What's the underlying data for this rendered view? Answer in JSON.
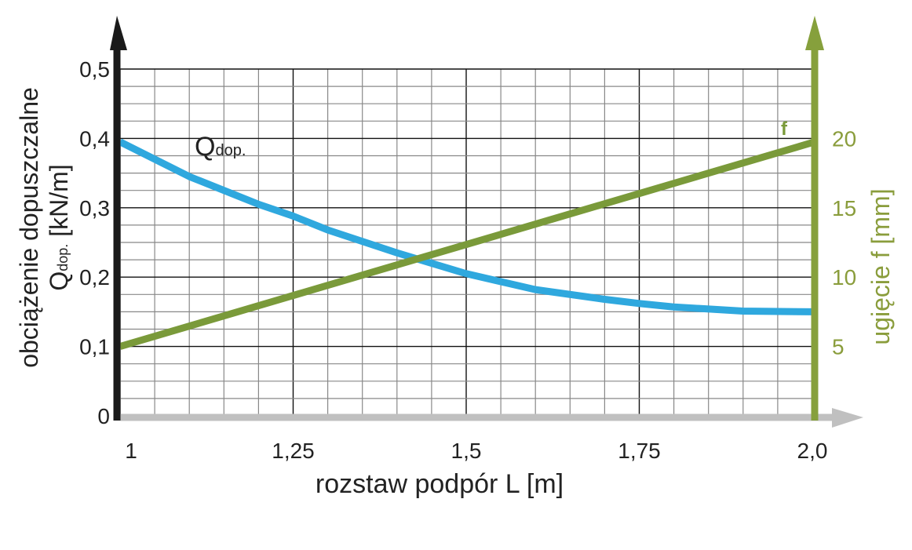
{
  "chart_data": {
    "type": "line",
    "title": "",
    "xlabel": "rozstaw podpór L [m]",
    "ylabel_line1": "obciążenie dopuszczalne",
    "ylabel_line2_main": "Q",
    "ylabel_line2_sub": "dop.",
    "ylabel_line2_unit": " [kN/m]",
    "y2label": "ugięcie f [mm]",
    "xlim": [
      1,
      2.0
    ],
    "ylim": [
      0,
      0.5
    ],
    "y2lim": [
      0,
      25
    ],
    "grid": true,
    "x_ticks": [
      1,
      1.25,
      1.5,
      1.75,
      2.0
    ],
    "x_tick_labels": [
      "1",
      "1,25",
      "1,5",
      "1,75",
      "2,0"
    ],
    "y_ticks": [
      0,
      0.1,
      0.2,
      0.3,
      0.4,
      0.5
    ],
    "y_tick_labels": [
      "0",
      "0,1",
      "0,2",
      "0,3",
      "0,4",
      "0,5"
    ],
    "y2_ticks": [
      5,
      10,
      15,
      20
    ],
    "y2_tick_labels": [
      "5",
      "10",
      "15",
      "20"
    ],
    "colors": {
      "left_axis": "#1a1a1a",
      "right_axis": "#86a03c",
      "x_axis": "#c0c0c0",
      "q_series": "#2fa8de",
      "f_series": "#7a9a3a"
    },
    "series": [
      {
        "name": "Qdop.",
        "label_main": "Q",
        "label_sub": "dop.",
        "axis": "left",
        "x": [
          1,
          1.1,
          1.2,
          1.25,
          1.3,
          1.4,
          1.5,
          1.6,
          1.7,
          1.75,
          1.8,
          1.9,
          2.0
        ],
        "values": [
          0.395,
          0.345,
          0.305,
          0.288,
          0.268,
          0.235,
          0.205,
          0.182,
          0.168,
          0.162,
          0.157,
          0.151,
          0.15
        ]
      },
      {
        "name": "f",
        "label_main": "f",
        "axis": "right",
        "x": [
          1,
          2.0
        ],
        "values": [
          5,
          19.7
        ]
      }
    ]
  }
}
